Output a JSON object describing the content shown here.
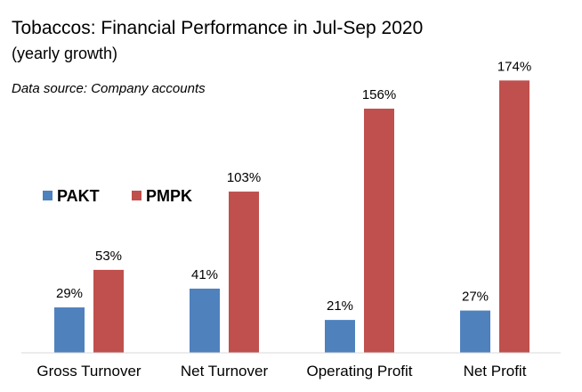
{
  "chart_data": {
    "type": "bar",
    "title": "Tobaccos: Financial Performance in Jul-Sep 2020",
    "subtitle": "(yearly growth)",
    "source": "Data source: Company accounts",
    "categories": [
      "Gross Turnover",
      "Net Turnover",
      "Operating Profit",
      "Net Profit"
    ],
    "series": [
      {
        "name": "PAKT",
        "color": "#4f81bd",
        "values": [
          29,
          41,
          21,
          27
        ],
        "labels": [
          "29%",
          "41%",
          "21%",
          "27%"
        ]
      },
      {
        "name": "PMPK",
        "color": "#c0504d",
        "values": [
          53,
          103,
          156,
          174
        ],
        "labels": [
          "53%",
          "103%",
          "156%",
          "174%"
        ]
      }
    ],
    "ylim": [
      0,
      185
    ],
    "grid": false,
    "legend_position": "left"
  }
}
